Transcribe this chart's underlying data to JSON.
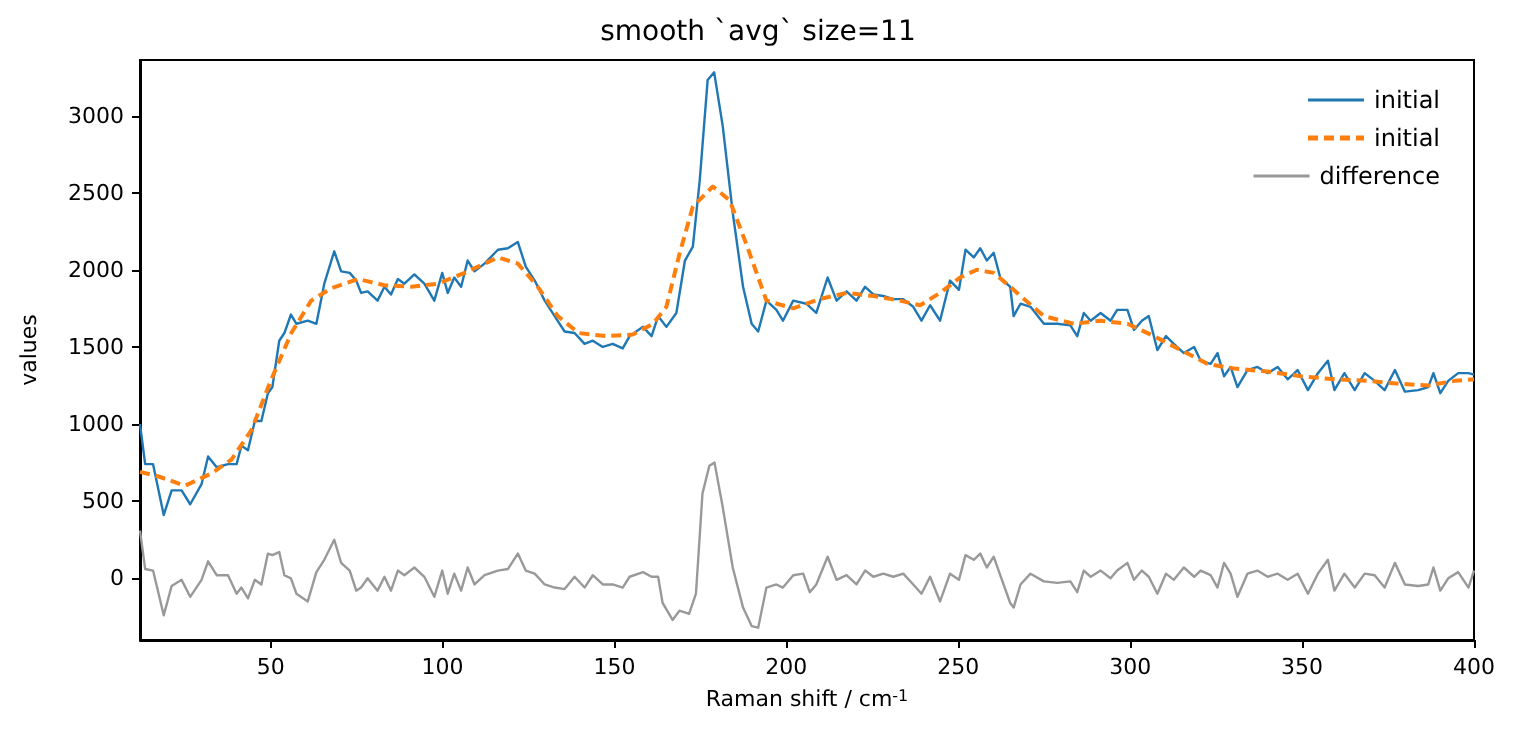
{
  "chart_data": {
    "type": "line",
    "title": "smooth `avg` size=11",
    "xlabel": "Raman shift / cm$^{-1}$",
    "ylabel": "values",
    "xlim": [
      12,
      400
    ],
    "xticks": [
      50,
      100,
      150,
      200,
      250,
      300,
      350,
      400
    ],
    "ylim": [
      -400,
      3360
    ],
    "yticks": [
      0,
      500,
      1000,
      1500,
      2000,
      2500,
      3000
    ],
    "grid": false,
    "legend": "top right",
    "marker": "none",
    "series": [
      {
        "name": "initial",
        "color": "#1f77b4",
        "line_style": "solid",
        "x": [
          12,
          13.5,
          15.8,
          18.9,
          21.2,
          24.1,
          26.6,
          29.9,
          31.8,
          34.3,
          37.6,
          40.1,
          41.5,
          43.4,
          45.4,
          47.3,
          49.2,
          50.5,
          52.5,
          54,
          55.9,
          57.5,
          60.8,
          63.3,
          65.6,
          68.5,
          70.5,
          73,
          74.9,
          76.3,
          78.2,
          81.1,
          83.1,
          85,
          87,
          88.9,
          91.8,
          94.7,
          97.6,
          99.9,
          101.5,
          103.4,
          105.4,
          107.3,
          109.3,
          112.2,
          116.1,
          119,
          121.9,
          124.2,
          126.8,
          129.7,
          132.6,
          135.5,
          138.4,
          141.3,
          143.7,
          146.6,
          149.5,
          152.4,
          154.4,
          158.3,
          160.8,
          162.7,
          165.1,
          168,
          170.5,
          172.8,
          174.8,
          177.1,
          179,
          181.5,
          184.4,
          187.4,
          189.9,
          191.8,
          194.2,
          197.1,
          199,
          202,
          205.8,
          208.7,
          212,
          214.6,
          217.5,
          220.4,
          222.9,
          225.3,
          228.2,
          231.1,
          234,
          236.9,
          239.3,
          241.8,
          244.7,
          247.6,
          250.2,
          252.1,
          254.5,
          256.4,
          258.3,
          260.3,
          262.2,
          265.1,
          266.1,
          268.1,
          271,
          274.9,
          278.8,
          282.6,
          284.6,
          286.5,
          288.5,
          291.4,
          294.3,
          296.2,
          299.2,
          301.1,
          303.4,
          305.4,
          307.9,
          310.4,
          312.7,
          315.6,
          318.6,
          320.5,
          323.4,
          325.4,
          327.3,
          329.2,
          331.2,
          334.1,
          337,
          340,
          342.9,
          345.8,
          348.7,
          351.7,
          354.6,
          357.5,
          359.4,
          362.3,
          365.3,
          368.2,
          371.1,
          374,
          377,
          379.9,
          383.8,
          386.7,
          388.2,
          390.2,
          392.5,
          395.4,
          398.4,
          400
        ],
        "values": [
          1000,
          740,
          740,
          410,
          570,
          570,
          480,
          610,
          790,
          720,
          740,
          740,
          860,
          830,
          1020,
          1020,
          1200,
          1240,
          1540,
          1590,
          1710,
          1650,
          1670,
          1650,
          1910,
          2120,
          1990,
          1980,
          1930,
          1850,
          1860,
          1800,
          1890,
          1840,
          1940,
          1910,
          1970,
          1910,
          1800,
          1980,
          1850,
          1950,
          1890,
          2060,
          1990,
          2040,
          2130,
          2140,
          2180,
          2020,
          1930,
          1800,
          1700,
          1600,
          1590,
          1520,
          1540,
          1500,
          1520,
          1490,
          1570,
          1630,
          1570,
          1700,
          1630,
          1720,
          2060,
          2150,
          2580,
          3230,
          3280,
          2930,
          2370,
          1890,
          1650,
          1600,
          1800,
          1740,
          1670,
          1800,
          1780,
          1720,
          1950,
          1800,
          1860,
          1800,
          1890,
          1840,
          1830,
          1810,
          1810,
          1760,
          1670,
          1770,
          1670,
          1930,
          1870,
          2130,
          2080,
          2140,
          2060,
          2110,
          1950,
          1890,
          1700,
          1780,
          1760,
          1650,
          1650,
          1640,
          1570,
          1720,
          1670,
          1720,
          1670,
          1740,
          1740,
          1610,
          1670,
          1700,
          1480,
          1570,
          1520,
          1460,
          1500,
          1410,
          1390,
          1460,
          1310,
          1370,
          1240,
          1350,
          1370,
          1330,
          1370,
          1290,
          1350,
          1220,
          1330,
          1410,
          1220,
          1330,
          1220,
          1330,
          1280,
          1220,
          1350,
          1210,
          1220,
          1240,
          1330,
          1200,
          1280,
          1330,
          1330,
          1320
        ]
      },
      {
        "name": "initial",
        "color": "#ff7f0e",
        "line_style": "dashed",
        "x": [
          12,
          17.4,
          25.1,
          32.8,
          38.6,
          44.4,
          50.2,
          56,
          61.8,
          67.6,
          75.4,
          83.1,
          90.9,
          98.7,
          106.4,
          116.1,
          121.9,
          127.7,
          133.5,
          139.6,
          147.6,
          155.3,
          161.2,
          165.1,
          169,
          172.8,
          178.6,
          183.5,
          188.3,
          194.2,
          202,
          209.7,
          217.5,
          225.3,
          233,
          238.9,
          244.7,
          250.5,
          255.4,
          260.3,
          265.1,
          268.1,
          274.9,
          283.6,
          291.4,
          299.2,
          306.9,
          314.7,
          322.5,
          330.2,
          339.9,
          349.7,
          359.4,
          369.1,
          378.9,
          386.7,
          394.5,
          400
        ],
        "values": [
          690,
          660,
          600,
          680,
          770,
          960,
          1290,
          1590,
          1800,
          1880,
          1940,
          1900,
          1890,
          1910,
          1980,
          2080,
          2040,
          1890,
          1700,
          1590,
          1570,
          1580,
          1650,
          1760,
          2110,
          2410,
          2540,
          2450,
          2170,
          1800,
          1750,
          1810,
          1850,
          1830,
          1800,
          1770,
          1850,
          1950,
          2000,
          1980,
          1890,
          1830,
          1700,
          1650,
          1670,
          1650,
          1570,
          1480,
          1390,
          1360,
          1340,
          1310,
          1290,
          1280,
          1260,
          1250,
          1280,
          1290
        ]
      },
      {
        "name": "difference",
        "color": "#999999",
        "line_style": "solid",
        "x": [
          12,
          13.5,
          15.8,
          18.9,
          21.2,
          24.1,
          26.6,
          29.9,
          31.8,
          34.3,
          37.6,
          40.1,
          41.5,
          43.4,
          45.4,
          47.3,
          49.2,
          50.5,
          52.5,
          54,
          55.9,
          57.5,
          60.8,
          63.3,
          65.6,
          68.5,
          70.5,
          73,
          74.9,
          76.3,
          78.2,
          81.1,
          83.1,
          85,
          87,
          88.9,
          91.8,
          94.7,
          97.6,
          99.9,
          101.5,
          103.4,
          105.4,
          107.3,
          109.3,
          112.2,
          116.1,
          119,
          121.9,
          124.2,
          126.8,
          129.7,
          132.6,
          135.5,
          138.4,
          141.3,
          143.7,
          146.6,
          149.5,
          152.4,
          154.4,
          158.3,
          160.8,
          162.7,
          164,
          166.9,
          168.9,
          171.7,
          173.7,
          175.6,
          177.6,
          179.1,
          181.5,
          184.4,
          187.4,
          189.9,
          191.8,
          194.2,
          197.1,
          199,
          202,
          204.9,
          206.8,
          208.7,
          212,
          214.6,
          217.5,
          220.4,
          222.9,
          225.3,
          228.2,
          231.1,
          234,
          236.9,
          239.3,
          241.8,
          244.7,
          247.6,
          250.2,
          252.1,
          254.5,
          256.4,
          258.3,
          260.3,
          262.2,
          265.1,
          266.1,
          268.1,
          271,
          274.9,
          278.8,
          282.6,
          284.6,
          286.5,
          288.5,
          291.4,
          294.3,
          296.2,
          299.2,
          301.1,
          303.4,
          305.4,
          307.9,
          310.4,
          312.7,
          315.6,
          318.6,
          320.5,
          323.4,
          325.4,
          327.3,
          329.2,
          331.2,
          334.1,
          337,
          340,
          342.9,
          345.8,
          348.7,
          351.7,
          354.6,
          357.5,
          359.4,
          362.3,
          365.3,
          368.2,
          371.1,
          374,
          377,
          379.9,
          383.8,
          386.7,
          388.2,
          390.2,
          392.5,
          395.4,
          398.4,
          400
        ],
        "values": [
          310,
          60,
          50,
          -240,
          -50,
          -10,
          -120,
          -10,
          110,
          20,
          20,
          -100,
          -60,
          -130,
          -10,
          -40,
          160,
          150,
          170,
          20,
          0,
          -100,
          -150,
          40,
          120,
          250,
          100,
          50,
          -80,
          -60,
          0,
          -80,
          10,
          -80,
          50,
          20,
          70,
          10,
          -120,
          50,
          -100,
          30,
          -80,
          70,
          -40,
          20,
          50,
          60,
          160,
          50,
          30,
          -40,
          -60,
          -70,
          10,
          -60,
          20,
          -40,
          -40,
          -60,
          10,
          40,
          10,
          10,
          -160,
          -270,
          -210,
          -230,
          -100,
          550,
          730,
          750,
          460,
          70,
          -190,
          -310,
          -320,
          -60,
          -40,
          -60,
          20,
          30,
          -90,
          -40,
          140,
          -10,
          20,
          -40,
          50,
          10,
          30,
          10,
          30,
          -40,
          -100,
          10,
          -150,
          30,
          -10,
          150,
          120,
          160,
          70,
          140,
          20,
          -160,
          -190,
          -40,
          30,
          -20,
          -30,
          -20,
          -90,
          50,
          10,
          50,
          0,
          50,
          100,
          -10,
          50,
          10,
          -100,
          30,
          -10,
          70,
          10,
          50,
          20,
          -60,
          100,
          30,
          -120,
          30,
          50,
          10,
          30,
          -10,
          30,
          -100,
          30,
          120,
          -80,
          30,
          -60,
          30,
          20,
          -60,
          100,
          -40,
          -50,
          -40,
          70,
          -80,
          0,
          40,
          -60,
          50
        ]
      }
    ]
  }
}
